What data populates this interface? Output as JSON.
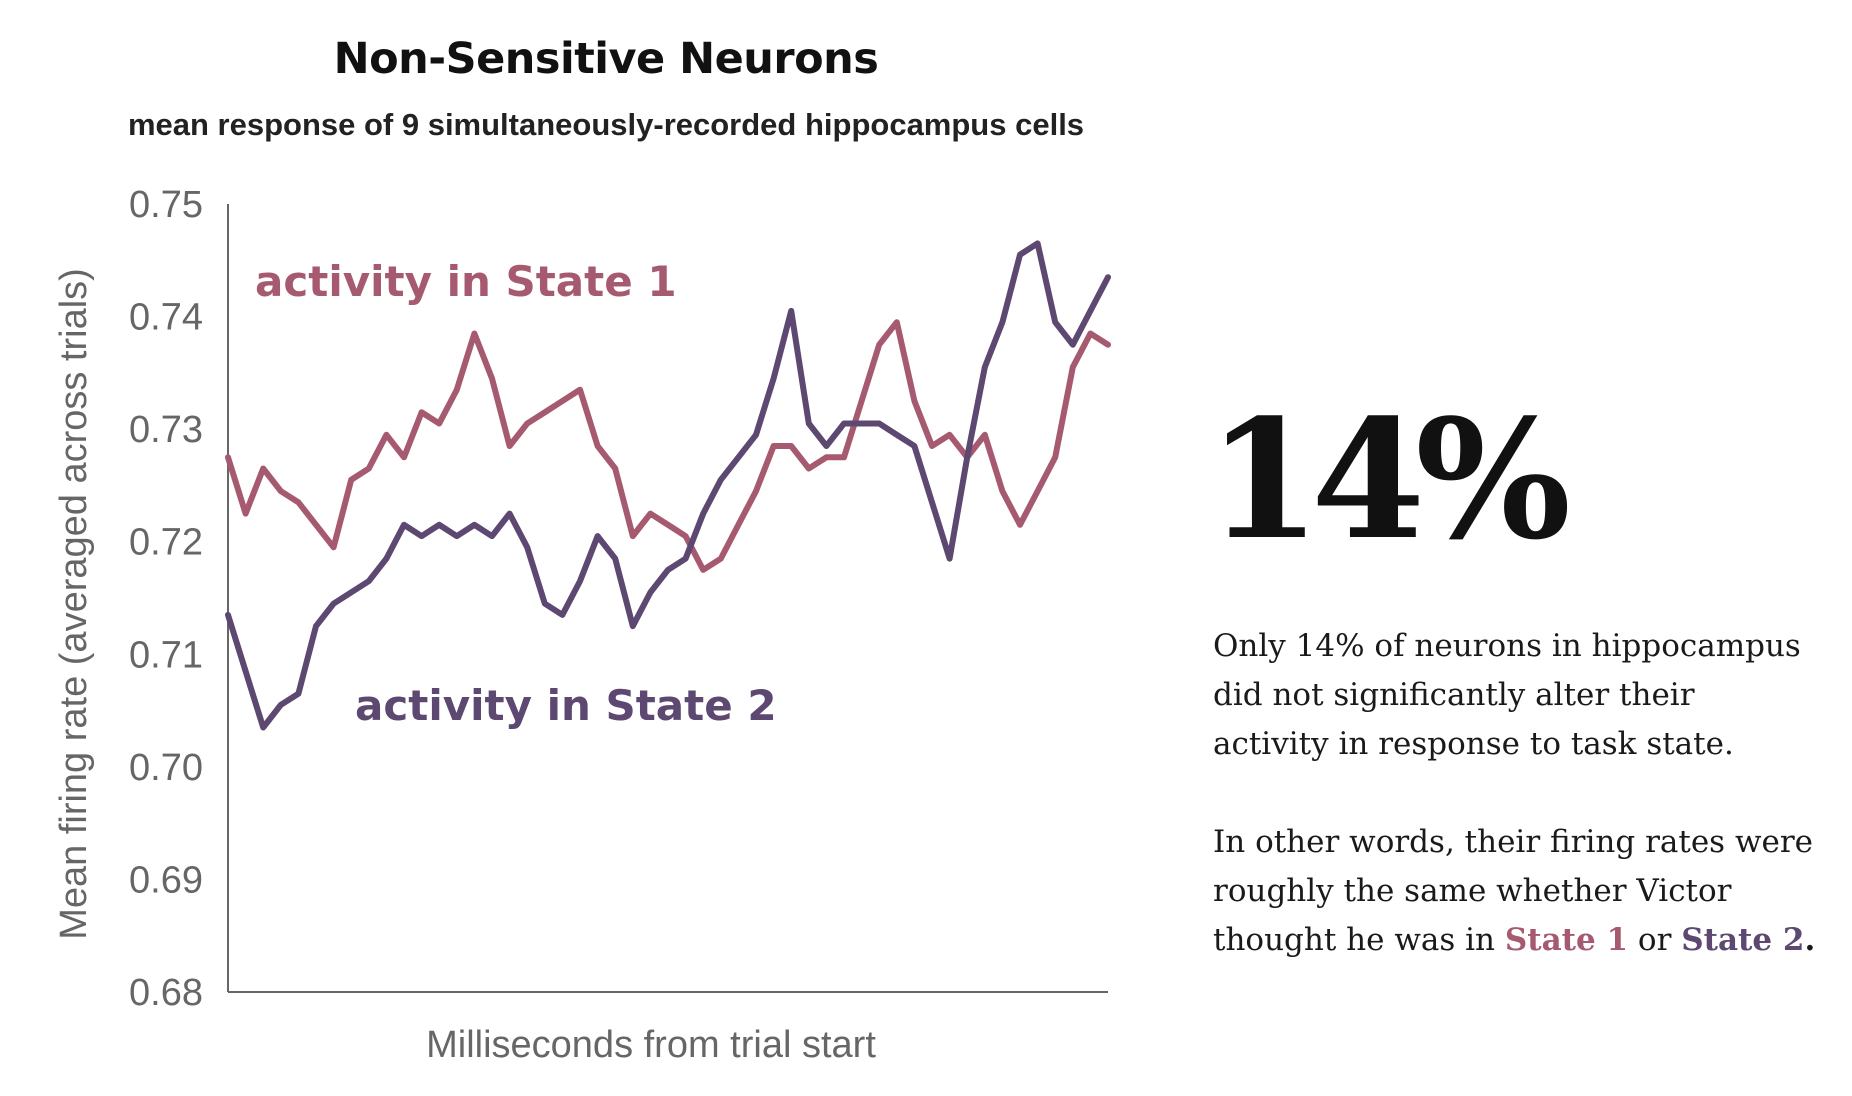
{
  "chart_data": {
    "type": "line",
    "title": "Non-Sensitive Neurons",
    "subtitle": "mean response of 9 simultaneously-recorded hippocampus cells",
    "xlabel": "Milliseconds from trial start",
    "ylabel": "Mean firing rate (averaged across trials)",
    "ylim": [
      0.68,
      0.75
    ],
    "yticks": [
      "0.68",
      "0.69",
      "0.70",
      "0.71",
      "0.72",
      "0.73",
      "0.74",
      "0.75"
    ],
    "x": [
      0,
      2,
      4,
      6,
      8,
      10,
      12,
      14,
      16,
      18,
      20,
      22,
      24,
      26,
      28,
      30,
      32,
      34,
      36,
      38,
      40,
      42,
      44,
      46,
      48,
      50,
      52,
      54,
      56,
      58,
      60,
      62,
      64,
      66,
      68,
      70,
      72,
      74,
      76,
      78,
      80,
      82,
      84,
      86,
      88,
      90,
      92,
      94,
      96,
      98,
      100
    ],
    "series": [
      {
        "name": "activity in State 1",
        "color": "#a65a70",
        "values": [
          0.7275,
          0.7225,
          0.7265,
          0.7245,
          0.7235,
          0.7215,
          0.7195,
          0.7255,
          0.7265,
          0.7295,
          0.7275,
          0.7315,
          0.7305,
          0.7335,
          0.7385,
          0.7345,
          0.7285,
          0.7305,
          0.7315,
          0.7325,
          0.7335,
          0.7285,
          0.7265,
          0.7205,
          0.7225,
          0.7215,
          0.7205,
          0.7175,
          0.7185,
          0.7215,
          0.7245,
          0.7285,
          0.7285,
          0.7265,
          0.7275,
          0.7275,
          0.7325,
          0.7375,
          0.7395,
          0.7325,
          0.7285,
          0.7295,
          0.7275,
          0.7295,
          0.7245,
          0.7215,
          0.7245,
          0.7275,
          0.7355,
          0.7385,
          0.7375
        ]
      },
      {
        "name": "activity in State 2",
        "color": "#5c4870",
        "values": [
          0.7135,
          0.7085,
          0.7035,
          0.7055,
          0.7065,
          0.7125,
          0.7145,
          0.7155,
          0.7165,
          0.7185,
          0.7215,
          0.7205,
          0.7215,
          0.7205,
          0.7215,
          0.7205,
          0.7225,
          0.7195,
          0.7145,
          0.7135,
          0.7165,
          0.7205,
          0.7185,
          0.7125,
          0.7155,
          0.7175,
          0.7185,
          0.7225,
          0.7255,
          0.7275,
          0.7295,
          0.7345,
          0.7405,
          0.7305,
          0.7285,
          0.7305,
          0.7305,
          0.7305,
          0.7295,
          0.7285,
          0.7235,
          0.7185,
          0.7275,
          0.7355,
          0.7395,
          0.7455,
          0.7465,
          0.7395,
          0.7375,
          0.7405,
          0.7435
        ]
      }
    ]
  },
  "callout": {
    "stat": "14%",
    "paragraph1_lines": [
      "Only 14% of neurons in hippocampus",
      "did not significantly alter their",
      "activity in response to task state."
    ],
    "paragraph2_lines": [
      "In other words, their firing rates were",
      "roughly the same whether Victor"
    ],
    "paragraph2_last_prefix": "thought he was in ",
    "state1": "State 1",
    "connector": " or ",
    "state2": "State 2",
    "end": "."
  }
}
